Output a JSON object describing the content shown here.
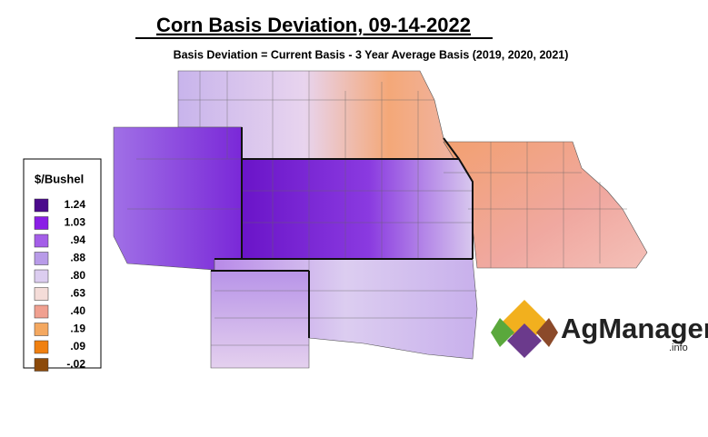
{
  "title": "Corn Basis Deviation, 09-14-2022",
  "subtitle": "Basis Deviation = Current Basis - 3 Year Average Basis (2019, 2020, 2021)",
  "legend": {
    "title": "$/Bushel",
    "entries": [
      {
        "label": "1.24",
        "color": "#4b0a8c"
      },
      {
        "label": "1.03",
        "color": "#8a1ee6"
      },
      {
        "label": ".94",
        "color": "#a45ee8"
      },
      {
        "label": ".88",
        "color": "#b89be8"
      },
      {
        "label": ".80",
        "color": "#dccdf0"
      },
      {
        "label": ".63",
        "color": "#f4dcd8"
      },
      {
        "label": ".40",
        "color": "#f0a090"
      },
      {
        "label": ".19",
        "color": "#f4a860"
      },
      {
        "label": ".09",
        "color": "#f08010"
      },
      {
        "label": "-.02",
        "color": "#8c4a0a"
      }
    ]
  },
  "logo": {
    "name": "AgManager",
    "suffix": ".info"
  }
}
